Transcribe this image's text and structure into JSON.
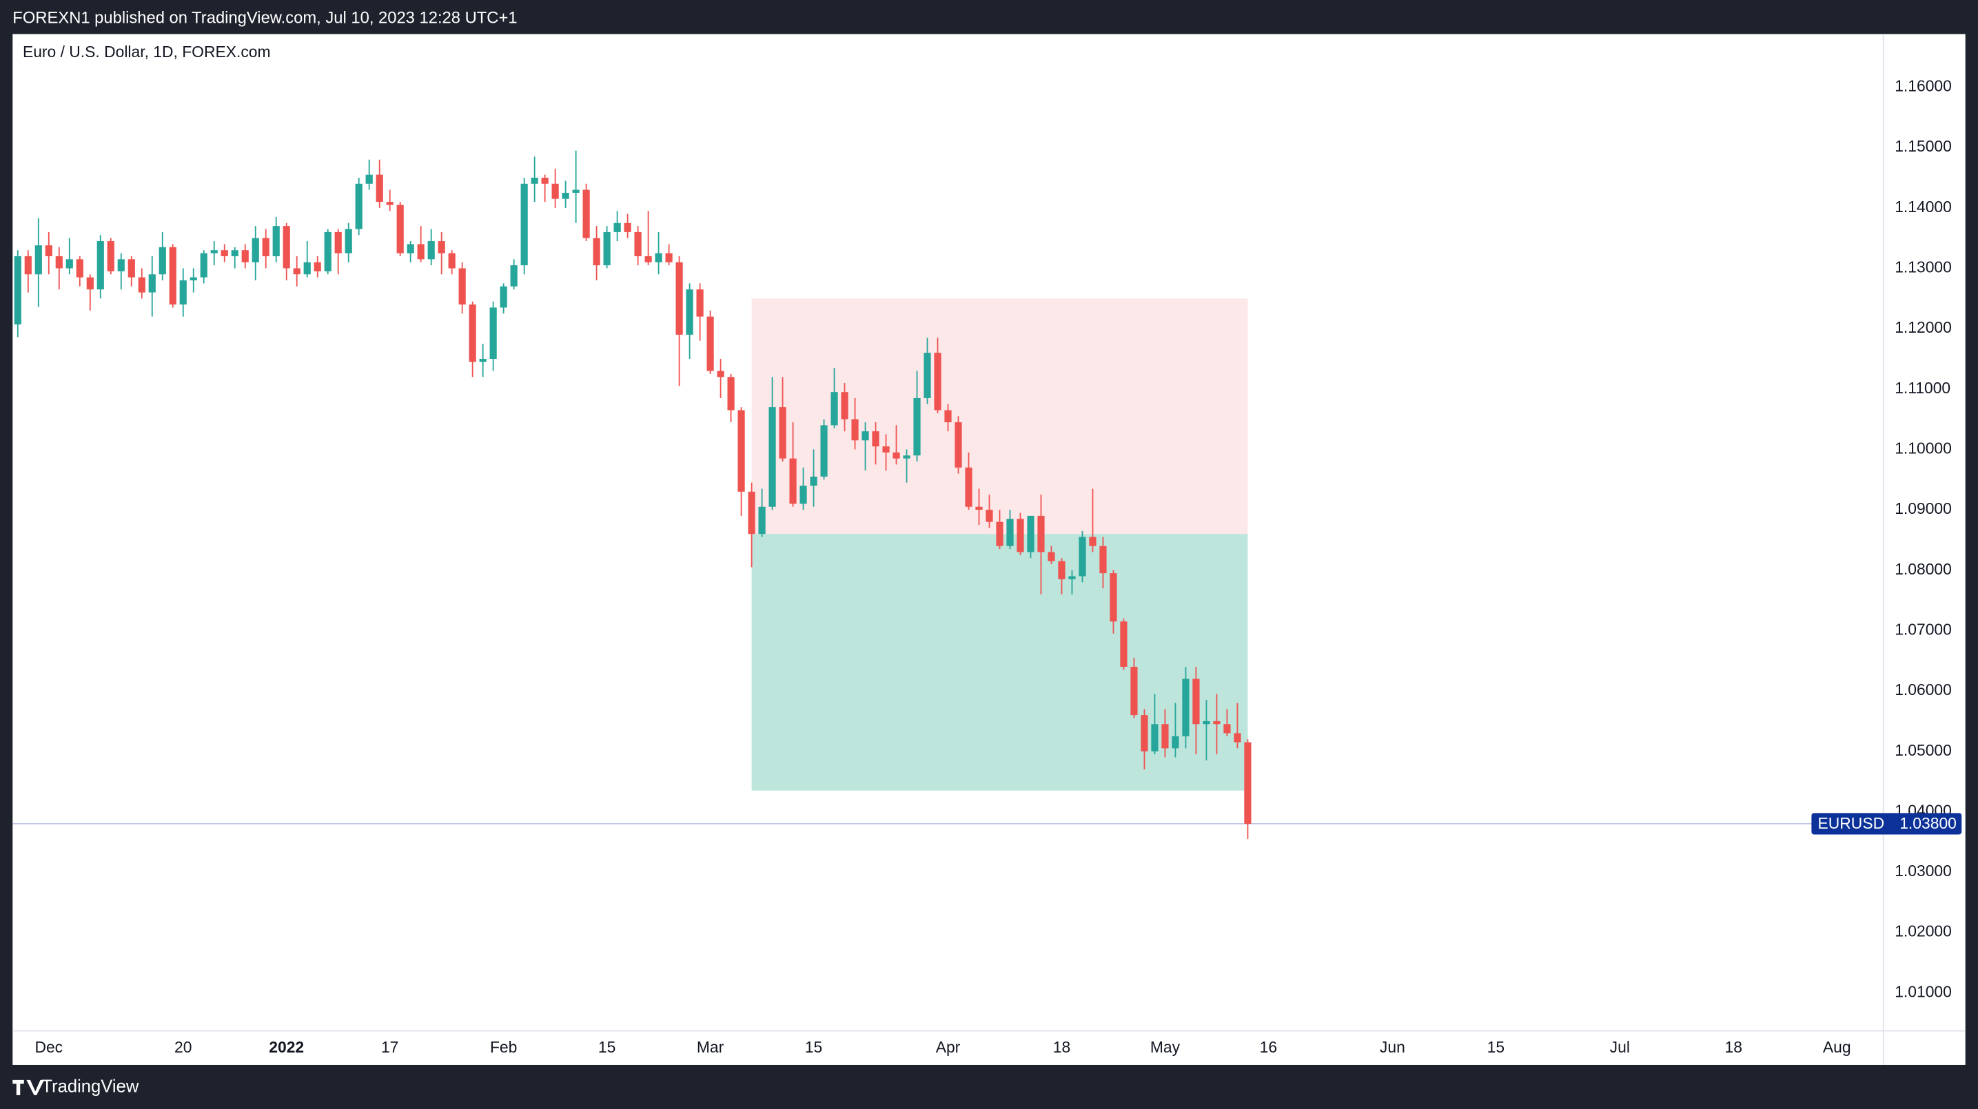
{
  "header": {
    "text": "FOREXN1 published on TradingView.com, Jul 10, 2023 12:28 UTC+1"
  },
  "chart_data": {
    "type": "candlestick",
    "title": "Euro / U.S. Dollar, 1D, FOREX.com",
    "up_color": "#26a69a",
    "down_color": "#ef5350",
    "grid": false,
    "x": [
      "2021-11-26",
      "2021-11-29",
      "2021-11-30",
      "2021-12-01",
      "2021-12-02",
      "2021-12-03",
      "2021-12-06",
      "2021-12-07",
      "2021-12-08",
      "2021-12-09",
      "2021-12-10",
      "2021-12-13",
      "2021-12-14",
      "2021-12-15",
      "2021-12-16",
      "2021-12-17",
      "2021-12-20",
      "2021-12-21",
      "2021-12-22",
      "2021-12-23",
      "2021-12-24",
      "2021-12-27",
      "2021-12-28",
      "2021-12-29",
      "2021-12-30",
      "2021-12-31",
      "2022-01-03",
      "2022-01-04",
      "2022-01-05",
      "2022-01-06",
      "2022-01-07",
      "2022-01-10",
      "2022-01-11",
      "2022-01-12",
      "2022-01-13",
      "2022-01-14",
      "2022-01-17",
      "2022-01-18",
      "2022-01-19",
      "2022-01-20",
      "2022-01-21",
      "2022-01-24",
      "2022-01-25",
      "2022-01-26",
      "2022-01-27",
      "2022-01-28",
      "2022-01-31",
      "2022-02-01",
      "2022-02-02",
      "2022-02-03",
      "2022-02-04",
      "2022-02-07",
      "2022-02-08",
      "2022-02-09",
      "2022-02-10",
      "2022-02-11",
      "2022-02-14",
      "2022-02-15",
      "2022-02-16",
      "2022-02-17",
      "2022-02-18",
      "2022-02-21",
      "2022-02-22",
      "2022-02-23",
      "2022-02-24",
      "2022-02-25",
      "2022-02-28",
      "2022-03-01",
      "2022-03-02",
      "2022-03-03",
      "2022-03-04",
      "2022-03-07",
      "2022-03-08",
      "2022-03-09",
      "2022-03-10",
      "2022-03-11",
      "2022-03-14",
      "2022-03-15",
      "2022-03-16",
      "2022-03-17",
      "2022-03-18",
      "2022-03-21",
      "2022-03-22",
      "2022-03-23",
      "2022-03-24",
      "2022-03-25",
      "2022-03-28",
      "2022-03-29",
      "2022-03-30",
      "2022-03-31",
      "2022-04-01",
      "2022-04-04",
      "2022-04-05",
      "2022-04-06",
      "2022-04-07",
      "2022-04-08",
      "2022-04-11",
      "2022-04-12",
      "2022-04-13",
      "2022-04-14",
      "2022-04-15",
      "2022-04-18",
      "2022-04-19",
      "2022-04-20",
      "2022-04-21",
      "2022-04-22",
      "2022-04-25",
      "2022-04-26",
      "2022-04-27",
      "2022-04-28",
      "2022-04-29",
      "2022-05-02",
      "2022-05-03",
      "2022-05-04",
      "2022-05-05",
      "2022-05-06",
      "2022-05-09",
      "2022-05-10",
      "2022-05-11",
      "2022-05-12"
    ],
    "open": [
      1.1207,
      1.132,
      1.129,
      1.1338,
      1.132,
      1.13,
      1.1315,
      1.1285,
      1.1265,
      1.1345,
      1.1295,
      1.1315,
      1.1285,
      1.126,
      1.129,
      1.1335,
      1.124,
      1.128,
      1.1285,
      1.1325,
      1.133,
      1.132,
      1.133,
      1.131,
      1.135,
      1.132,
      1.137,
      1.13,
      1.129,
      1.131,
      1.1295,
      1.136,
      1.1325,
      1.1365,
      1.144,
      1.1455,
      1.141,
      1.1405,
      1.1325,
      1.134,
      1.1315,
      1.1345,
      1.1325,
      1.13,
      1.124,
      1.1145,
      1.115,
      1.1235,
      1.127,
      1.1305,
      1.144,
      1.145,
      1.144,
      1.1415,
      1.1425,
      1.143,
      1.135,
      1.1305,
      1.136,
      1.1375,
      1.136,
      1.132,
      1.131,
      1.1325,
      1.131,
      1.119,
      1.1265,
      1.122,
      1.113,
      1.112,
      1.1065,
      1.093,
      1.086,
      1.0905,
      1.107,
      1.0985,
      1.091,
      1.094,
      1.0955,
      1.104,
      1.1095,
      1.105,
      1.1015,
      1.103,
      1.1005,
      1.0995,
      1.0985,
      1.099,
      1.1085,
      1.116,
      1.1065,
      1.1045,
      1.097,
      1.0905,
      1.09,
      1.088,
      1.084,
      1.0885,
      1.083,
      1.089,
      1.083,
      1.0815,
      1.0785,
      1.079,
      1.0855,
      1.084,
      1.0795,
      1.0715,
      1.064,
      1.056,
      1.05,
      1.0545,
      1.0505,
      1.0525,
      1.062,
      1.0545,
      1.055,
      1.0545,
      1.053,
      1.0515
    ],
    "high": [
      1.133,
      1.133,
      1.1383,
      1.136,
      1.1335,
      1.135,
      1.132,
      1.129,
      1.1355,
      1.135,
      1.1325,
      1.132,
      1.13,
      1.132,
      1.136,
      1.134,
      1.13,
      1.13,
      1.133,
      1.1345,
      1.134,
      1.1335,
      1.134,
      1.137,
      1.1365,
      1.1385,
      1.1375,
      1.132,
      1.1345,
      1.132,
      1.1365,
      1.1365,
      1.1375,
      1.145,
      1.148,
      1.148,
      1.143,
      1.141,
      1.1345,
      1.137,
      1.1365,
      1.136,
      1.133,
      1.131,
      1.1245,
      1.1175,
      1.1245,
      1.1275,
      1.1315,
      1.145,
      1.1485,
      1.1455,
      1.1465,
      1.1445,
      1.1495,
      1.144,
      1.137,
      1.137,
      1.1395,
      1.139,
      1.137,
      1.1395,
      1.136,
      1.134,
      1.132,
      1.1275,
      1.1275,
      1.123,
      1.115,
      1.1125,
      1.107,
      1.0945,
      1.0935,
      1.112,
      1.112,
      1.1045,
      1.097,
      1.1,
      1.105,
      1.1135,
      1.111,
      1.1085,
      1.1045,
      1.1045,
      1.1025,
      1.104,
      1.1,
      1.113,
      1.1185,
      1.1185,
      1.1075,
      1.1055,
      1.0995,
      1.0935,
      1.0925,
      1.09,
      1.09,
      1.0895,
      1.089,
      1.0925,
      1.084,
      1.082,
      1.08,
      1.0865,
      1.0935,
      1.0855,
      1.08,
      1.072,
      1.0655,
      1.057,
      1.0595,
      1.057,
      1.058,
      1.064,
      1.064,
      1.0585,
      1.0595,
      1.057,
      1.058,
      1.052
    ],
    "low": [
      1.1186,
      1.126,
      1.1236,
      1.129,
      1.1265,
      1.129,
      1.127,
      1.123,
      1.125,
      1.129,
      1.1265,
      1.127,
      1.125,
      1.122,
      1.128,
      1.1235,
      1.122,
      1.126,
      1.1275,
      1.1305,
      1.131,
      1.13,
      1.13,
      1.128,
      1.13,
      1.131,
      1.128,
      1.127,
      1.1285,
      1.1285,
      1.129,
      1.129,
      1.131,
      1.1355,
      1.143,
      1.14,
      1.1395,
      1.132,
      1.131,
      1.131,
      1.1305,
      1.129,
      1.129,
      1.1225,
      1.112,
      1.112,
      1.113,
      1.1225,
      1.1265,
      1.129,
      1.141,
      1.141,
      1.14,
      1.14,
      1.1375,
      1.1345,
      1.128,
      1.13,
      1.1345,
      1.135,
      1.1305,
      1.1305,
      1.129,
      1.1305,
      1.1105,
      1.115,
      1.118,
      1.1125,
      1.1085,
      1.1045,
      1.089,
      1.0805,
      1.0855,
      1.09,
      1.098,
      1.0905,
      1.09,
      1.0905,
      1.095,
      1.1035,
      1.103,
      1.1,
      1.0965,
      1.0975,
      1.0965,
      1.0975,
      1.0945,
      1.098,
      1.1075,
      1.106,
      1.103,
      1.096,
      1.09,
      1.0875,
      1.087,
      1.0835,
      1.0835,
      1.0825,
      1.082,
      1.076,
      1.081,
      1.076,
      1.076,
      1.078,
      1.083,
      1.077,
      1.0695,
      1.0635,
      1.0555,
      1.047,
      1.0495,
      1.049,
      1.049,
      1.0505,
      1.0495,
      1.0485,
      1.0495,
      1.0525,
      1.0505,
      1.0355
    ],
    "close": [
      1.132,
      1.129,
      1.1338,
      1.132,
      1.13,
      1.1315,
      1.1285,
      1.1265,
      1.1345,
      1.1295,
      1.1315,
      1.1285,
      1.126,
      1.129,
      1.1335,
      1.124,
      1.128,
      1.1285,
      1.1325,
      1.133,
      1.132,
      1.133,
      1.131,
      1.135,
      1.132,
      1.137,
      1.13,
      1.129,
      1.131,
      1.1295,
      1.136,
      1.1325,
      1.1365,
      1.144,
      1.1455,
      1.141,
      1.1405,
      1.1325,
      1.134,
      1.1315,
      1.1345,
      1.1325,
      1.13,
      1.124,
      1.1145,
      1.115,
      1.1235,
      1.127,
      1.1305,
      1.144,
      1.145,
      1.144,
      1.1415,
      1.1425,
      1.143,
      1.135,
      1.1305,
      1.136,
      1.1375,
      1.136,
      1.132,
      1.131,
      1.1325,
      1.131,
      1.119,
      1.1265,
      1.122,
      1.113,
      1.112,
      1.1065,
      1.093,
      1.086,
      1.0905,
      1.107,
      1.0985,
      1.091,
      1.094,
      1.0955,
      1.104,
      1.1095,
      1.105,
      1.1015,
      1.103,
      1.1005,
      1.0995,
      1.0985,
      1.099,
      1.1085,
      1.116,
      1.1065,
      1.1045,
      1.097,
      1.0905,
      1.09,
      1.088,
      1.084,
      1.0885,
      1.083,
      1.089,
      1.083,
      1.0815,
      1.0785,
      1.079,
      1.0855,
      1.084,
      1.0795,
      1.0715,
      1.064,
      1.056,
      1.05,
      1.0545,
      1.0505,
      1.0525,
      1.062,
      1.0545,
      1.055,
      1.0545,
      1.053,
      1.0515,
      1.038
    ],
    "xlim": [
      "2021-11-26",
      "2022-08-05"
    ],
    "xticks": [
      {
        "value": "2021-12-01",
        "label": "Dec"
      },
      {
        "value": "2021-12-20",
        "label": "20"
      },
      {
        "value": "2022-01-03",
        "label": "2022"
      },
      {
        "value": "2022-01-17",
        "label": "17"
      },
      {
        "value": "2022-02-01",
        "label": "Feb"
      },
      {
        "value": "2022-02-15",
        "label": "15"
      },
      {
        "value": "2022-03-01",
        "label": "Mar"
      },
      {
        "value": "2022-03-15",
        "label": "15"
      },
      {
        "value": "2022-04-01",
        "label": "Apr"
      },
      {
        "value": "2022-04-18",
        "label": "18"
      },
      {
        "value": "2022-05-02",
        "label": "May"
      },
      {
        "value": "2022-05-16",
        "label": "16"
      },
      {
        "value": "2022-06-01",
        "label": "Jun"
      },
      {
        "value": "2022-06-15",
        "label": "15"
      },
      {
        "value": "2022-07-01",
        "label": "Jul"
      },
      {
        "value": "2022-07-18",
        "label": "18"
      },
      {
        "value": "2022-08-01",
        "label": "Aug"
      }
    ],
    "ylim": [
      1.0037,
      1.1688
    ],
    "yticks": [
      {
        "value": 1.01,
        "label": "1.01000"
      },
      {
        "value": 1.02,
        "label": "1.02000"
      },
      {
        "value": 1.03,
        "label": "1.03000"
      },
      {
        "value": 1.04,
        "label": "1.04000"
      },
      {
        "value": 1.05,
        "label": "1.05000"
      },
      {
        "value": 1.06,
        "label": "1.06000"
      },
      {
        "value": 1.07,
        "label": "1.07000"
      },
      {
        "value": 1.08,
        "label": "1.08000"
      },
      {
        "value": 1.09,
        "label": "1.09000"
      },
      {
        "value": 1.1,
        "label": "1.10000"
      },
      {
        "value": 1.11,
        "label": "1.11000"
      },
      {
        "value": 1.12,
        "label": "1.12000"
      },
      {
        "value": 1.13,
        "label": "1.13000"
      },
      {
        "value": 1.14,
        "label": "1.14000"
      },
      {
        "value": 1.15,
        "label": "1.15000"
      },
      {
        "value": 1.16,
        "label": "1.16000"
      }
    ],
    "last_price": {
      "symbol": "EURUSD",
      "value": 1.038,
      "label": "1.03800",
      "color": "#0c3299"
    },
    "position": {
      "start": "2022-03-07",
      "end": "2022-05-12",
      "stop": 1.125,
      "entry": 1.086,
      "target": 1.0435,
      "stop_color": "#fde8e9",
      "target_color": "#bde5dc"
    }
  },
  "footer": {
    "brand": "TradingView"
  }
}
